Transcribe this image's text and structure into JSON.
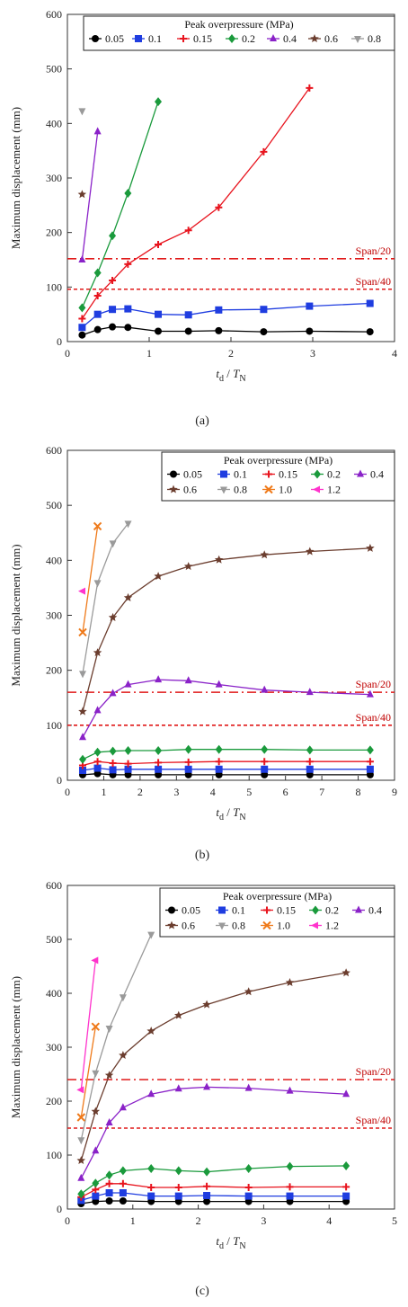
{
  "chart_data": [
    {
      "type": "line",
      "caption": "(a)",
      "xlabel_main": "t",
      "xlabel_main_sub": "d",
      "xlabel_sep": " / ",
      "xlabel_second": "T",
      "xlabel_second_sub": "N",
      "ylabel": "Maximum displacement (mm)",
      "xlim": [
        0,
        4
      ],
      "ylim": [
        0,
        600
      ],
      "xticks": [
        0,
        1,
        2,
        3,
        4
      ],
      "yticks": [
        0,
        100,
        200,
        300,
        400,
        500,
        600
      ],
      "legend_title": "Peak overpressure (MPa)",
      "legend_rows": [
        [
          "0.05",
          "0.1",
          "0.15",
          "0.2",
          "0.4",
          "0.6",
          "0.8"
        ]
      ],
      "reference_lines": [
        {
          "label": "Span/20",
          "y": 152,
          "style": "dashdot"
        },
        {
          "label": "Span/40",
          "y": 96,
          "style": "dash"
        }
      ],
      "series": [
        {
          "name": "0.05",
          "color": "#000000",
          "marker": "circle",
          "x": [
            0.18,
            0.37,
            0.55,
            0.74,
            1.11,
            1.48,
            1.85,
            2.4,
            2.96,
            3.7
          ],
          "y": [
            12,
            22,
            27,
            26,
            19,
            19,
            20,
            18,
            19,
            18
          ]
        },
        {
          "name": "0.1",
          "color": "#1f3de0",
          "marker": "square",
          "x": [
            0.18,
            0.37,
            0.55,
            0.74,
            1.11,
            1.48,
            1.85,
            2.4,
            2.96,
            3.7
          ],
          "y": [
            26,
            50,
            59,
            60,
            50,
            49,
            58,
            59,
            65,
            70
          ]
        },
        {
          "name": "0.15",
          "color": "#e8141e",
          "marker": "plus",
          "x": [
            0.18,
            0.37,
            0.55,
            0.74,
            1.11,
            1.48,
            1.85,
            2.4,
            2.96
          ],
          "y": [
            42,
            84,
            112,
            142,
            178,
            204,
            246,
            348,
            465
          ]
        },
        {
          "name": "0.2",
          "color": "#1a9a3c",
          "marker": "diamond",
          "x": [
            0.18,
            0.37,
            0.55,
            0.74,
            1.11
          ],
          "y": [
            62,
            126,
            194,
            272,
            440
          ]
        },
        {
          "name": "0.4",
          "color": "#8a22c8",
          "marker": "triangle",
          "x": [
            0.18,
            0.37
          ],
          "y": [
            150,
            385
          ]
        },
        {
          "name": "0.6",
          "color": "#6b3d2e",
          "marker": "star",
          "x": [
            0.18
          ],
          "y": [
            270
          ]
        },
        {
          "name": "0.8",
          "color": "#9a9a9a",
          "marker": "tridown",
          "x": [
            0.18
          ],
          "y": [
            423
          ]
        }
      ]
    },
    {
      "type": "line",
      "caption": "(b)",
      "xlabel_main": "t",
      "xlabel_main_sub": "d",
      "xlabel_sep": " / ",
      "xlabel_second": "T",
      "xlabel_second_sub": "N",
      "ylabel": "Maximum displacement (mm)",
      "xlim": [
        0,
        9
      ],
      "ylim": [
        0,
        600
      ],
      "xticks": [
        0,
        1,
        2,
        3,
        4,
        5,
        6,
        7,
        8,
        9
      ],
      "yticks": [
        0,
        100,
        200,
        300,
        400,
        500,
        600
      ],
      "legend_title": "Peak overpressure (MPa)",
      "legend_rows": [
        [
          "0.05",
          "0.1",
          "0.15",
          "0.2",
          "0.4"
        ],
        [
          "0.6",
          "0.8",
          "1.0",
          "1.2"
        ]
      ],
      "reference_lines": [
        {
          "label": "Span/20",
          "y": 160,
          "style": "dashdot"
        },
        {
          "label": "Span/40",
          "y": 100,
          "style": "dash"
        }
      ],
      "series": [
        {
          "name": "0.05",
          "color": "#000000",
          "marker": "circle",
          "x": [
            0.42,
            0.83,
            1.25,
            1.67,
            2.5,
            3.33,
            4.17,
            5.42,
            6.67,
            8.33
          ],
          "y": [
            10,
            12,
            10,
            10,
            10,
            10,
            10,
            10,
            10,
            10
          ]
        },
        {
          "name": "0.1",
          "color": "#1f3de0",
          "marker": "square",
          "x": [
            0.42,
            0.83,
            1.25,
            1.67,
            2.5,
            3.33,
            4.17,
            5.42,
            6.67,
            8.33
          ],
          "y": [
            18,
            22,
            19,
            20,
            20,
            20,
            20,
            20,
            20,
            20
          ]
        },
        {
          "name": "0.15",
          "color": "#e8141e",
          "marker": "plus",
          "x": [
            0.42,
            0.83,
            1.25,
            1.67,
            2.5,
            3.33,
            4.17,
            5.42,
            6.67,
            8.33
          ],
          "y": [
            27,
            34,
            31,
            30,
            32,
            33,
            34,
            34,
            34,
            34
          ]
        },
        {
          "name": "0.2",
          "color": "#1a9a3c",
          "marker": "diamond",
          "x": [
            0.42,
            0.83,
            1.25,
            1.67,
            2.5,
            3.33,
            4.17,
            5.42,
            6.67,
            8.33
          ],
          "y": [
            38,
            51,
            53,
            54,
            54,
            56,
            56,
            56,
            55,
            55
          ]
        },
        {
          "name": "0.4",
          "color": "#8a22c8",
          "marker": "triangle",
          "x": [
            0.42,
            0.83,
            1.25,
            1.67,
            2.5,
            3.33,
            4.17,
            5.42,
            6.67,
            8.33
          ],
          "y": [
            78,
            127,
            158,
            174,
            183,
            181,
            174,
            164,
            160,
            156
          ]
        },
        {
          "name": "0.6",
          "color": "#6b3d2e",
          "marker": "star",
          "x": [
            0.42,
            0.83,
            1.25,
            1.67,
            2.5,
            3.33,
            4.17,
            5.42,
            6.67,
            8.33
          ],
          "y": [
            125,
            232,
            296,
            332,
            371,
            389,
            401,
            410,
            416,
            422
          ]
        },
        {
          "name": "0.8",
          "color": "#9a9a9a",
          "marker": "tridown",
          "x": [
            0.42,
            0.83,
            1.25,
            1.67
          ],
          "y": [
            194,
            359,
            431,
            467
          ]
        },
        {
          "name": "1.0",
          "color": "#ef7a1a",
          "marker": "x",
          "x": [
            0.42,
            0.83
          ],
          "y": [
            269,
            462
          ]
        },
        {
          "name": "1.2",
          "color": "#ff33cc",
          "marker": "triangleleft",
          "x": [
            0.42
          ],
          "y": [
            344
          ]
        }
      ]
    },
    {
      "type": "line",
      "caption": "(c)",
      "xlabel_main": "t",
      "xlabel_main_sub": "d",
      "xlabel_sep": " / ",
      "xlabel_second": "T",
      "xlabel_second_sub": "N",
      "ylabel": "Maximum displacement (mm)",
      "xlim": [
        0,
        5
      ],
      "ylim": [
        0,
        600
      ],
      "xticks": [
        0,
        1,
        2,
        3,
        4,
        5
      ],
      "yticks": [
        0,
        100,
        200,
        300,
        400,
        500,
        600
      ],
      "legend_title": "Peak overpressure (MPa)",
      "legend_rows": [
        [
          "0.05",
          "0.1",
          "0.15",
          "0.2",
          "0.4"
        ],
        [
          "0.6",
          "0.8",
          "1.0",
          "1.2"
        ]
      ],
      "reference_lines": [
        {
          "label": "Span/20",
          "y": 240,
          "style": "dashdot"
        },
        {
          "label": "Span/40",
          "y": 150,
          "style": "dash"
        }
      ],
      "series": [
        {
          "name": "0.05",
          "color": "#000000",
          "marker": "circle",
          "x": [
            0.21,
            0.43,
            0.64,
            0.85,
            1.28,
            1.7,
            2.13,
            2.77,
            3.4,
            4.26
          ],
          "y": [
            10,
            14,
            15,
            15,
            14,
            14,
            14,
            14,
            14,
            14
          ]
        },
        {
          "name": "0.1",
          "color": "#1f3de0",
          "marker": "square",
          "x": [
            0.21,
            0.43,
            0.64,
            0.85,
            1.28,
            1.7,
            2.13,
            2.77,
            3.4,
            4.26
          ],
          "y": [
            16,
            24,
            30,
            30,
            24,
            24,
            25,
            24,
            24,
            24
          ]
        },
        {
          "name": "0.15",
          "color": "#e8141e",
          "marker": "plus",
          "x": [
            0.21,
            0.43,
            0.64,
            0.85,
            1.28,
            1.7,
            2.13,
            2.77,
            3.4,
            4.26
          ],
          "y": [
            22,
            36,
            47,
            47,
            40,
            40,
            42,
            40,
            41,
            41
          ]
        },
        {
          "name": "0.2",
          "color": "#1a9a3c",
          "marker": "diamond",
          "x": [
            0.21,
            0.43,
            0.64,
            0.85,
            1.28,
            1.7,
            2.13,
            2.77,
            3.4,
            4.26
          ],
          "y": [
            28,
            48,
            63,
            71,
            75,
            71,
            69,
            75,
            79,
            80
          ]
        },
        {
          "name": "0.4",
          "color": "#8a22c8",
          "marker": "triangle",
          "x": [
            0.21,
            0.43,
            0.64,
            0.85,
            1.28,
            1.7,
            2.13,
            2.77,
            3.4,
            4.26
          ],
          "y": [
            57,
            108,
            160,
            188,
            213,
            223,
            226,
            224,
            219,
            213
          ]
        },
        {
          "name": "0.6",
          "color": "#6b3d2e",
          "marker": "star",
          "x": [
            0.21,
            0.43,
            0.64,
            0.85,
            1.28,
            1.7,
            2.13,
            2.77,
            3.4,
            4.26
          ],
          "y": [
            90,
            181,
            248,
            285,
            330,
            359,
            379,
            403,
            420,
            438
          ]
        },
        {
          "name": "0.8",
          "color": "#9a9a9a",
          "marker": "tridown",
          "x": [
            0.21,
            0.43,
            0.64,
            0.85,
            1.28
          ],
          "y": [
            128,
            252,
            335,
            393,
            509
          ]
        },
        {
          "name": "1.0",
          "color": "#ef7a1a",
          "marker": "x",
          "x": [
            0.21,
            0.43
          ],
          "y": [
            170,
            338
          ]
        },
        {
          "name": "1.2",
          "color": "#ff33cc",
          "marker": "triangleleft",
          "x": [
            0.21,
            0.43
          ],
          "y": [
            221,
            461
          ]
        }
      ]
    }
  ]
}
